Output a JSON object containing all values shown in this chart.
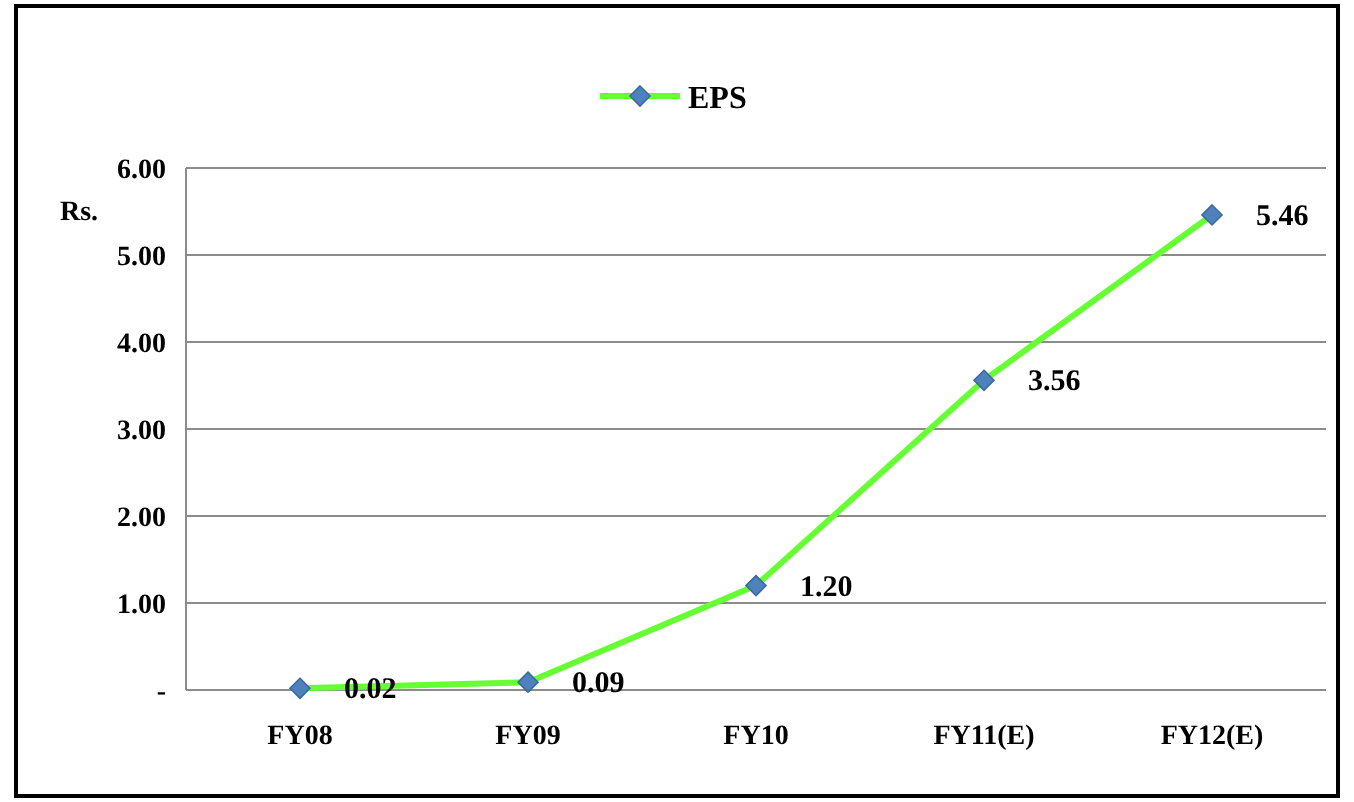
{
  "chart_data": {
    "type": "line",
    "ylabel": "Rs.",
    "categories": [
      "FY08",
      "FY09",
      "FY10",
      "FY11(E)",
      "FY12(E)"
    ],
    "series": [
      {
        "name": "EPS",
        "color": "#66ff33",
        "values": [
          0.02,
          0.09,
          1.2,
          3.56,
          5.46
        ],
        "value_labels": [
          "0.02",
          "0.09",
          "1.20",
          "3.56",
          "5.46"
        ]
      }
    ],
    "ylim": [
      0,
      6
    ],
    "yticks": [
      {
        "value": 0,
        "label": "-"
      },
      {
        "value": 1,
        "label": "1.00"
      },
      {
        "value": 2,
        "label": "2.00"
      },
      {
        "value": 3,
        "label": "3.00"
      },
      {
        "value": 4,
        "label": "4.00"
      },
      {
        "value": 5,
        "label": "5.00"
      },
      {
        "value": 6,
        "label": "6.00"
      }
    ],
    "grid": "y",
    "legend": "top",
    "marker": "diamond",
    "line_style": "solid"
  }
}
